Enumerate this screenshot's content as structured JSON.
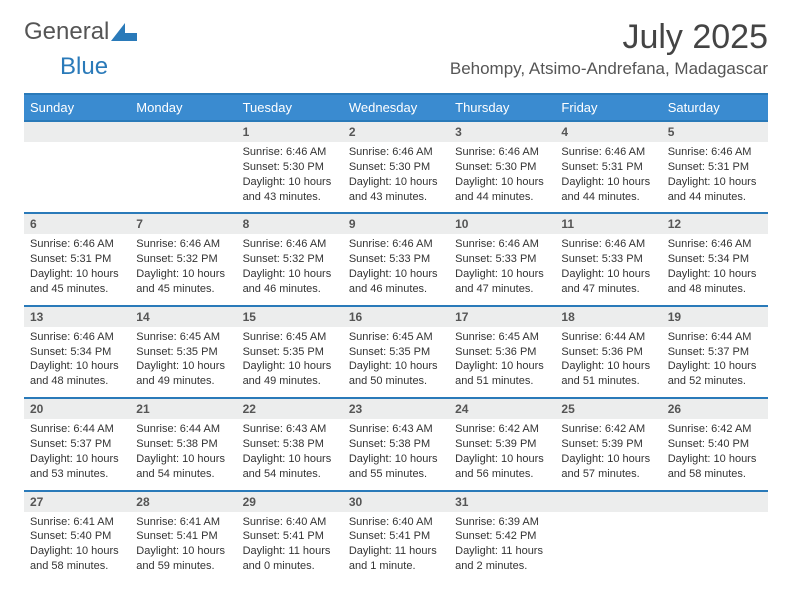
{
  "logo": {
    "text1": "General",
    "text2": "Blue"
  },
  "header": {
    "month_title": "July 2025",
    "location": "Behompy, Atsimo-Andrefana, Madagascar"
  },
  "colors": {
    "header_bg": "#3a8bd0",
    "header_border": "#2a7ab9",
    "daynum_bg": "#eceded",
    "text": "#333333"
  },
  "day_labels": [
    "Sunday",
    "Monday",
    "Tuesday",
    "Wednesday",
    "Thursday",
    "Friday",
    "Saturday"
  ],
  "weeks": [
    [
      {
        "n": "",
        "sr": "",
        "ss": "",
        "dl": ""
      },
      {
        "n": "",
        "sr": "",
        "ss": "",
        "dl": ""
      },
      {
        "n": "1",
        "sr": "Sunrise: 6:46 AM",
        "ss": "Sunset: 5:30 PM",
        "dl": "Daylight: 10 hours and 43 minutes."
      },
      {
        "n": "2",
        "sr": "Sunrise: 6:46 AM",
        "ss": "Sunset: 5:30 PM",
        "dl": "Daylight: 10 hours and 43 minutes."
      },
      {
        "n": "3",
        "sr": "Sunrise: 6:46 AM",
        "ss": "Sunset: 5:30 PM",
        "dl": "Daylight: 10 hours and 44 minutes."
      },
      {
        "n": "4",
        "sr": "Sunrise: 6:46 AM",
        "ss": "Sunset: 5:31 PM",
        "dl": "Daylight: 10 hours and 44 minutes."
      },
      {
        "n": "5",
        "sr": "Sunrise: 6:46 AM",
        "ss": "Sunset: 5:31 PM",
        "dl": "Daylight: 10 hours and 44 minutes."
      }
    ],
    [
      {
        "n": "6",
        "sr": "Sunrise: 6:46 AM",
        "ss": "Sunset: 5:31 PM",
        "dl": "Daylight: 10 hours and 45 minutes."
      },
      {
        "n": "7",
        "sr": "Sunrise: 6:46 AM",
        "ss": "Sunset: 5:32 PM",
        "dl": "Daylight: 10 hours and 45 minutes."
      },
      {
        "n": "8",
        "sr": "Sunrise: 6:46 AM",
        "ss": "Sunset: 5:32 PM",
        "dl": "Daylight: 10 hours and 46 minutes."
      },
      {
        "n": "9",
        "sr": "Sunrise: 6:46 AM",
        "ss": "Sunset: 5:33 PM",
        "dl": "Daylight: 10 hours and 46 minutes."
      },
      {
        "n": "10",
        "sr": "Sunrise: 6:46 AM",
        "ss": "Sunset: 5:33 PM",
        "dl": "Daylight: 10 hours and 47 minutes."
      },
      {
        "n": "11",
        "sr": "Sunrise: 6:46 AM",
        "ss": "Sunset: 5:33 PM",
        "dl": "Daylight: 10 hours and 47 minutes."
      },
      {
        "n": "12",
        "sr": "Sunrise: 6:46 AM",
        "ss": "Sunset: 5:34 PM",
        "dl": "Daylight: 10 hours and 48 minutes."
      }
    ],
    [
      {
        "n": "13",
        "sr": "Sunrise: 6:46 AM",
        "ss": "Sunset: 5:34 PM",
        "dl": "Daylight: 10 hours and 48 minutes."
      },
      {
        "n": "14",
        "sr": "Sunrise: 6:45 AM",
        "ss": "Sunset: 5:35 PM",
        "dl": "Daylight: 10 hours and 49 minutes."
      },
      {
        "n": "15",
        "sr": "Sunrise: 6:45 AM",
        "ss": "Sunset: 5:35 PM",
        "dl": "Daylight: 10 hours and 49 minutes."
      },
      {
        "n": "16",
        "sr": "Sunrise: 6:45 AM",
        "ss": "Sunset: 5:35 PM",
        "dl": "Daylight: 10 hours and 50 minutes."
      },
      {
        "n": "17",
        "sr": "Sunrise: 6:45 AM",
        "ss": "Sunset: 5:36 PM",
        "dl": "Daylight: 10 hours and 51 minutes."
      },
      {
        "n": "18",
        "sr": "Sunrise: 6:44 AM",
        "ss": "Sunset: 5:36 PM",
        "dl": "Daylight: 10 hours and 51 minutes."
      },
      {
        "n": "19",
        "sr": "Sunrise: 6:44 AM",
        "ss": "Sunset: 5:37 PM",
        "dl": "Daylight: 10 hours and 52 minutes."
      }
    ],
    [
      {
        "n": "20",
        "sr": "Sunrise: 6:44 AM",
        "ss": "Sunset: 5:37 PM",
        "dl": "Daylight: 10 hours and 53 minutes."
      },
      {
        "n": "21",
        "sr": "Sunrise: 6:44 AM",
        "ss": "Sunset: 5:38 PM",
        "dl": "Daylight: 10 hours and 54 minutes."
      },
      {
        "n": "22",
        "sr": "Sunrise: 6:43 AM",
        "ss": "Sunset: 5:38 PM",
        "dl": "Daylight: 10 hours and 54 minutes."
      },
      {
        "n": "23",
        "sr": "Sunrise: 6:43 AM",
        "ss": "Sunset: 5:38 PM",
        "dl": "Daylight: 10 hours and 55 minutes."
      },
      {
        "n": "24",
        "sr": "Sunrise: 6:42 AM",
        "ss": "Sunset: 5:39 PM",
        "dl": "Daylight: 10 hours and 56 minutes."
      },
      {
        "n": "25",
        "sr": "Sunrise: 6:42 AM",
        "ss": "Sunset: 5:39 PM",
        "dl": "Daylight: 10 hours and 57 minutes."
      },
      {
        "n": "26",
        "sr": "Sunrise: 6:42 AM",
        "ss": "Sunset: 5:40 PM",
        "dl": "Daylight: 10 hours and 58 minutes."
      }
    ],
    [
      {
        "n": "27",
        "sr": "Sunrise: 6:41 AM",
        "ss": "Sunset: 5:40 PM",
        "dl": "Daylight: 10 hours and 58 minutes."
      },
      {
        "n": "28",
        "sr": "Sunrise: 6:41 AM",
        "ss": "Sunset: 5:41 PM",
        "dl": "Daylight: 10 hours and 59 minutes."
      },
      {
        "n": "29",
        "sr": "Sunrise: 6:40 AM",
        "ss": "Sunset: 5:41 PM",
        "dl": "Daylight: 11 hours and 0 minutes."
      },
      {
        "n": "30",
        "sr": "Sunrise: 6:40 AM",
        "ss": "Sunset: 5:41 PM",
        "dl": "Daylight: 11 hours and 1 minute."
      },
      {
        "n": "31",
        "sr": "Sunrise: 6:39 AM",
        "ss": "Sunset: 5:42 PM",
        "dl": "Daylight: 11 hours and 2 minutes."
      },
      {
        "n": "",
        "sr": "",
        "ss": "",
        "dl": ""
      },
      {
        "n": "",
        "sr": "",
        "ss": "",
        "dl": ""
      }
    ]
  ]
}
